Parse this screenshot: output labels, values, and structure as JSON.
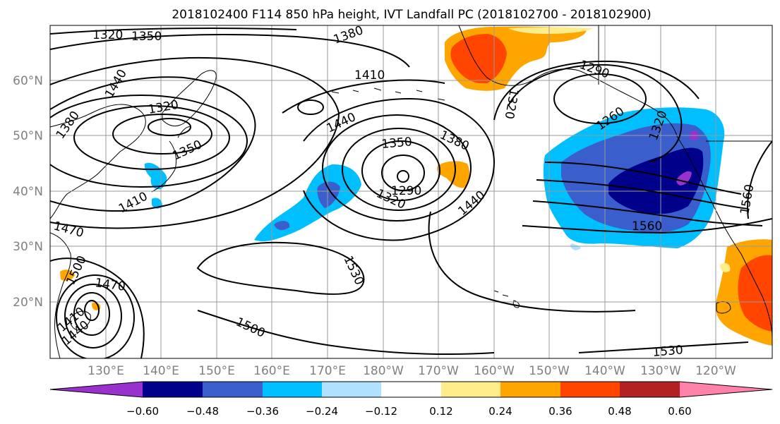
{
  "title": "2018102400 F114 850 hPa height, IVT Landfall PC (2018102700 - 2018102900)",
  "lat_labels": [
    "60°N",
    "50°N",
    "40°N",
    "30°N",
    "20°N"
  ],
  "lon_labels": [
    "130°E",
    "140°E",
    "150°E",
    "160°E",
    "170°E",
    "180°W",
    "170°W",
    "160°W",
    "150°W",
    "140°W",
    "130°W",
    "120°W"
  ],
  "contour_labels": [
    "1320",
    "1350",
    "1380",
    "1410",
    "1440",
    "1380",
    "1320",
    "1350",
    "1410",
    "1470",
    "1500",
    "1470",
    "1410",
    "1440",
    "1440",
    "1380",
    "1350",
    "1320",
    "1290",
    "1440",
    "1530",
    "1500",
    "1290",
    "1260",
    "1320",
    "1560",
    "1530",
    "1560",
    "1320"
  ],
  "colorbar": {
    "ticks": [
      "−0.60",
      "−0.48",
      "−0.36",
      "−0.24",
      "−0.12",
      "0.12",
      "0.24",
      "0.36",
      "0.48",
      "0.60"
    ],
    "colors": [
      "#9932cc",
      "#00008b",
      "#3a5fcd",
      "#00bfff",
      "#b0e2ff",
      "#ffffff",
      "#ffec8b",
      "#ffa500",
      "#ff4500",
      "#b22222",
      "#ff82ab"
    ]
  },
  "colors": {
    "grid": "#999999",
    "land_outline": "#000000",
    "axis_label": "#808080"
  }
}
